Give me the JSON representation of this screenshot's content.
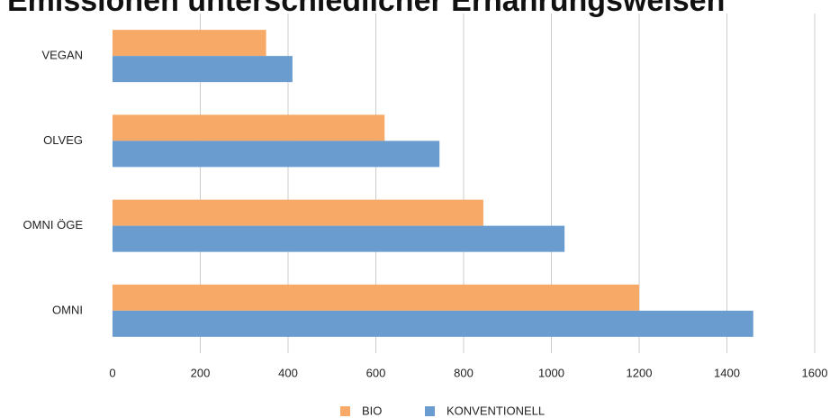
{
  "chart_data": {
    "type": "hbar",
    "title": "Emissionen unterschiedlicher Ernährungsweisen",
    "categories": [
      "VEGAN",
      "OLVEG",
      "OMNI ÖGE",
      "OMNI"
    ],
    "series": [
      {
        "name": "BIO",
        "color": "#f7aa68",
        "values": [
          350,
          620,
          845,
          1200
        ]
      },
      {
        "name": "KONVENTIONELL",
        "color": "#6a9ccf",
        "values": [
          410,
          745,
          1030,
          1460
        ]
      }
    ],
    "xlim": [
      0,
      1600
    ],
    "xticks": [
      0,
      200,
      400,
      600,
      800,
      1000,
      1200,
      1400,
      1600
    ],
    "grid": true,
    "legend": "bottom"
  }
}
